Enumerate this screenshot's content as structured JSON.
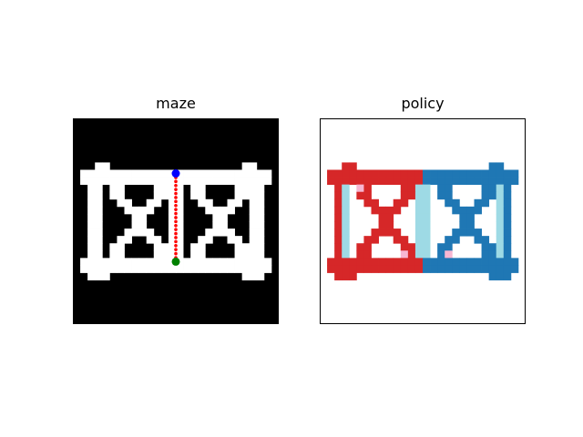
{
  "figure": {
    "bg": "#ffffff"
  },
  "chart_data": [
    {
      "type": "heatmap",
      "panel": "maze",
      "title": "maze",
      "grid_size": 28,
      "colors": {
        "wall": "#000000",
        "open": "#ffffff",
        "path": "#ff0000",
        "start": "#0000ff",
        "goal": "#008000"
      },
      "open_segments": [
        [
          7,
          1,
          8,
          3
        ],
        [
          8,
          3,
          10,
          5
        ],
        [
          10,
          5,
          12,
          8
        ],
        [
          12,
          8,
          13,
          10
        ],
        [
          13,
          10,
          14,
          11
        ],
        [
          14,
          11,
          15,
          12
        ],
        [
          15,
          12,
          16,
          14
        ],
        [
          16,
          14,
          17,
          15
        ],
        [
          17,
          15,
          18,
          18
        ],
        [
          18,
          18,
          19,
          22
        ],
        [
          19,
          22,
          20,
          24
        ],
        [
          20,
          24,
          21,
          26
        ],
        [
          7,
          26,
          10,
          24
        ],
        [
          10,
          24,
          12,
          22
        ],
        [
          12,
          22,
          13,
          20
        ],
        [
          13,
          20,
          15,
          17
        ],
        [
          15,
          17,
          16,
          15
        ],
        [
          16,
          15,
          17,
          13
        ],
        [
          17,
          13,
          19,
          11
        ],
        [
          19,
          11,
          20,
          8
        ],
        [
          20,
          8,
          21,
          1
        ],
        [
          7,
          1,
          7,
          26
        ],
        [
          21,
          1,
          21,
          26
        ],
        [
          7,
          1,
          7,
          5
        ],
        [
          7,
          22,
          7,
          26
        ],
        [
          21,
          1,
          21,
          5
        ],
        [
          21,
          22,
          21,
          26
        ]
      ],
      "divider_col": 14,
      "path": {
        "col": 14.5,
        "row_start": 7.5,
        "row_end": 19.5,
        "num_points": 23
      },
      "start": {
        "col": 14.5,
        "row": 7.5
      },
      "goal": {
        "col": 14.5,
        "row": 19.5
      }
    },
    {
      "type": "heatmap",
      "panel": "policy",
      "title": "policy",
      "grid_size": 28,
      "colors": {
        "bg": "#ffffff",
        "left": "#d62728",
        "right": "#1f77b4",
        "up": "#9edae5",
        "down": "#f7b6d2"
      },
      "divider_col": 14
    }
  ]
}
